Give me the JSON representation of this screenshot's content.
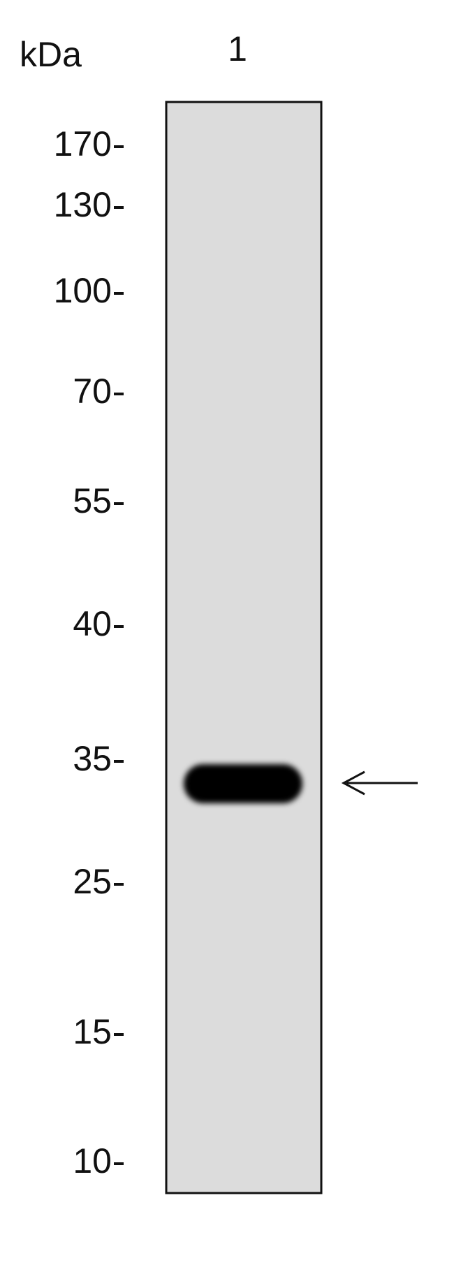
{
  "header": {
    "unit": "kDa",
    "lane": "1"
  },
  "markers": [
    170,
    130,
    100,
    70,
    55,
    40,
    35,
    25,
    15,
    10
  ]
}
